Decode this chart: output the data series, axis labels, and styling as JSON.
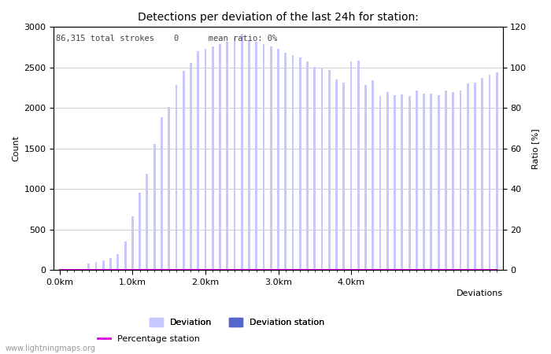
{
  "title": "Detections per deviation of the last 24h for station:",
  "annotation": "86,315 total strokes    0      mean ratio: 0%",
  "xlabel": "Deviations",
  "ylabel_left": "Count",
  "ylabel_right": "Ratio [%]",
  "ylim_left": [
    0,
    3000
  ],
  "ylim_right": [
    0,
    120
  ],
  "yticks_left": [
    0,
    500,
    1000,
    1500,
    2000,
    2500,
    3000
  ],
  "yticks_right": [
    0,
    20,
    40,
    60,
    80,
    100,
    120
  ],
  "xtick_labels": [
    "0.0km",
    "1.0km",
    "2.0km",
    "3.0km",
    "4.0km"
  ],
  "xtick_positions": [
    0,
    10,
    20,
    30,
    40
  ],
  "bar_width": 0.3,
  "deviation_color": "#c8c8ff",
  "deviation_station_color": "#5566cc",
  "percentage_station_color": "#dd00dd",
  "watermark": "www.lightningmaps.org",
  "deviation_values": [
    5,
    8,
    10,
    12,
    80,
    100,
    120,
    150,
    200,
    350,
    660,
    950,
    1190,
    1560,
    1890,
    2010,
    2280,
    2460,
    2560,
    2700,
    2730,
    2760,
    2790,
    2820,
    2870,
    2920,
    2840,
    2820,
    2790,
    2760,
    2730,
    2680,
    2650,
    2620,
    2580,
    2510,
    2500,
    2470,
    2350,
    2310,
    2580,
    2590,
    2280,
    2340,
    2150,
    2200,
    2160,
    2170,
    2150,
    2220,
    2180,
    2180,
    2160,
    2220,
    2200,
    2220,
    2300,
    2310,
    2370,
    2410,
    2440
  ],
  "station_values": [
    0,
    0,
    0,
    0,
    0,
    0,
    0,
    0,
    0,
    0,
    0,
    0,
    0,
    0,
    0,
    0,
    0,
    0,
    0,
    0,
    0,
    0,
    0,
    0,
    0,
    0,
    0,
    0,
    0,
    0,
    0,
    0,
    0,
    0,
    0,
    0,
    0,
    0,
    0,
    0,
    0,
    0,
    0,
    0,
    0,
    0,
    0,
    0,
    0,
    0,
    0,
    0,
    0,
    0,
    0,
    0,
    0,
    0,
    0,
    0,
    0
  ],
  "percentage_values": [
    0,
    0,
    0,
    0,
    0,
    0,
    0,
    0,
    0,
    0,
    0,
    0,
    0,
    0,
    0,
    0,
    0,
    0,
    0,
    0,
    0,
    0,
    0,
    0,
    0,
    0,
    0,
    0,
    0,
    0,
    0,
    0,
    0,
    0,
    0,
    0,
    0,
    0,
    0,
    0,
    0,
    0,
    0,
    0,
    0,
    0,
    0,
    0,
    0,
    0,
    0,
    0,
    0,
    0,
    0,
    0,
    0,
    0,
    0,
    0,
    0
  ],
  "background_color": "#ffffff",
  "grid_color": "#bbbbbb",
  "title_fontsize": 10,
  "label_fontsize": 8,
  "tick_fontsize": 8
}
